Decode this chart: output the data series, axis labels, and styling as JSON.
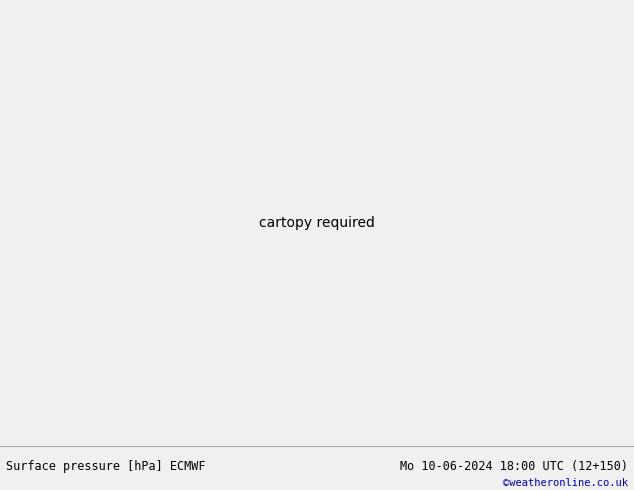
{
  "title_left": "Surface pressure [hPa] ECMWF",
  "title_right": "Mo 10-06-2024 18:00 UTC (12+150)",
  "copyright": "©weatheronline.co.uk",
  "bg_color": "#d8eaf5",
  "land_color": "#b8dfa0",
  "sea_color": "#d8eaf5",
  "fig_width": 6.34,
  "fig_height": 4.9,
  "dpi": 100,
  "font_size_title": 8.5,
  "font_size_copyright": 7.5,
  "blue_contour_color": "#1111cc",
  "red_contour_color": "#cc1111",
  "black_contour_color": "#000000",
  "lon_min": -30,
  "lon_max": 75,
  "lat_min": -42,
  "lat_max": 42
}
